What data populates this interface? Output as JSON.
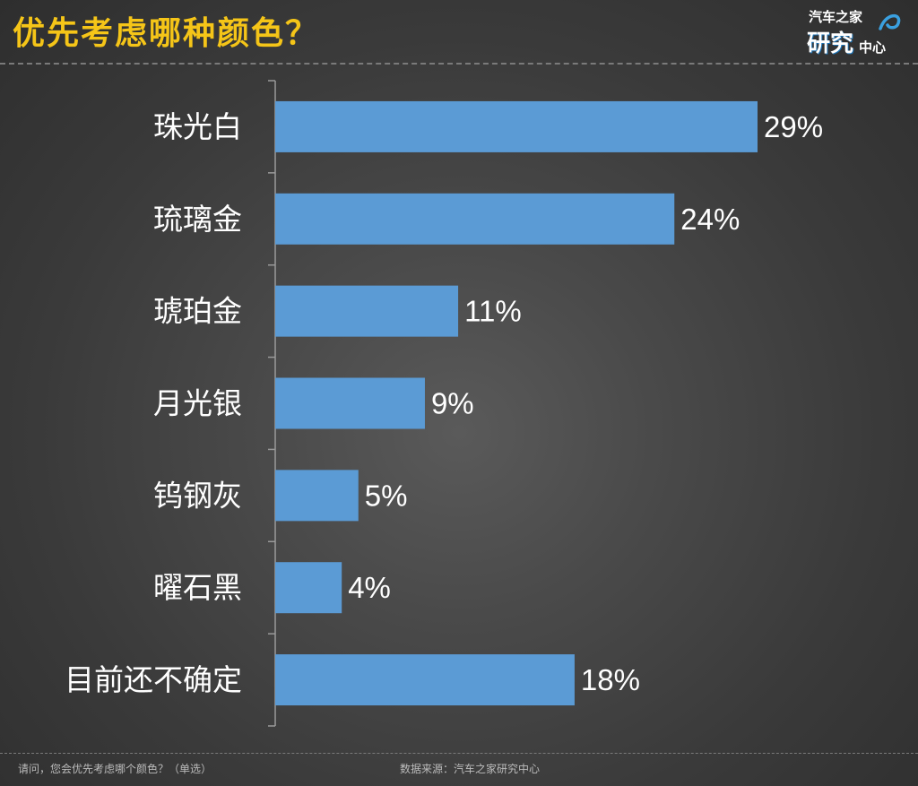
{
  "header": {
    "title": "优先考虑哪种颜色？",
    "logo": {
      "line1": "汽车之家",
      "line2": "研究",
      "line3": "中心"
    }
  },
  "footer": {
    "question": "请问，您会优先考虑哪个颜色？（单选）",
    "source": "数据来源：汽车之家研究中心"
  },
  "colors": {
    "title": "#f5c518",
    "bar": "#5b9bd5",
    "text": "#ffffff",
    "axis": "#9a9a9a"
  },
  "chart_data": {
    "type": "bar",
    "orientation": "horizontal",
    "title": "优先考虑哪种颜色？",
    "categories": [
      "珠光白",
      "琉璃金",
      "琥珀金",
      "月光银",
      "钨钢灰",
      "曜石黑",
      "目前还不确定"
    ],
    "values": [
      29,
      24,
      11,
      9,
      5,
      4,
      18
    ],
    "value_labels": [
      "29%",
      "24%",
      "11%",
      "9%",
      "5%",
      "4%",
      "18%"
    ],
    "unit": "%",
    "xlim": [
      0,
      30
    ],
    "grid": false,
    "legend": "none"
  }
}
